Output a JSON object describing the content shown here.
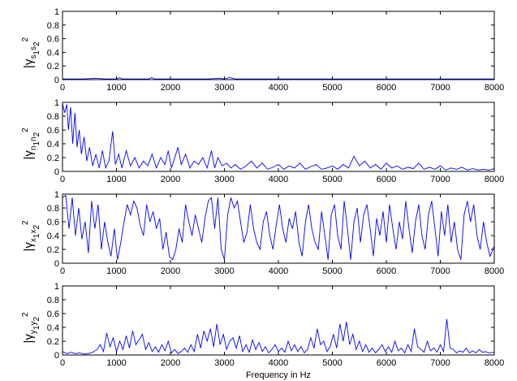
{
  "chart_data": [
    {
      "type": "line",
      "ylabel": {
        "main": "|γ",
        "sub1": "s",
        "sub2": "s",
        "idx1": "1",
        "idx2": "2",
        "sup": "2"
      },
      "xlim": [
        0,
        8000
      ],
      "ylim": [
        0,
        1
      ],
      "xticks": [
        "0",
        "1000",
        "2000",
        "3000",
        "4000",
        "5000",
        "6000",
        "7000",
        "8000"
      ],
      "yticks": [
        "0",
        "0.2",
        "0.4",
        "0.6",
        "0.8",
        "1"
      ],
      "color": "#0000ff",
      "x": [
        0,
        50,
        100,
        200,
        400,
        600,
        800,
        1000,
        1060,
        1100,
        1150,
        1300,
        1600,
        1650,
        1700,
        2000,
        2200,
        2500,
        2700,
        2900,
        3000,
        3100,
        3200,
        3400,
        3700,
        4000,
        4300,
        4600,
        4800,
        5000,
        5300,
        5600,
        6000,
        6300,
        6600,
        7000,
        7300,
        7600,
        8000
      ],
      "y": [
        0.01,
        0.01,
        0.01,
        0.01,
        0.01,
        0.02,
        0.01,
        0.01,
        0.03,
        0.01,
        0.01,
        0.01,
        0.01,
        0.03,
        0.01,
        0.01,
        0.01,
        0.01,
        0.01,
        0.02,
        0.01,
        0.03,
        0.01,
        0.01,
        0.01,
        0.01,
        0.01,
        0.01,
        0.01,
        0.01,
        0.01,
        0.01,
        0.01,
        0.01,
        0.01,
        0.01,
        0.01,
        0.01,
        0.01
      ]
    },
    {
      "type": "line",
      "ylabel": {
        "main": "|γ",
        "sub1": "n",
        "sub2": "n",
        "idx1": "1",
        "idx2": "2",
        "sup": "2"
      },
      "xlim": [
        0,
        8000
      ],
      "ylim": [
        0,
        1
      ],
      "xticks": [
        "0",
        "1000",
        "2000",
        "3000",
        "4000",
        "5000",
        "6000",
        "7000",
        "8000"
      ],
      "yticks": [
        "0",
        "0.2",
        "0.4",
        "0.6",
        "0.8",
        "1"
      ],
      "color": "#0000ff",
      "x": [
        0,
        40,
        80,
        110,
        150,
        190,
        230,
        270,
        310,
        350,
        400,
        450,
        500,
        560,
        620,
        680,
        740,
        800,
        860,
        930,
        980,
        1040,
        1100,
        1180,
        1260,
        1340,
        1420,
        1500,
        1580,
        1660,
        1740,
        1820,
        1900,
        1960,
        2020,
        2080,
        2140,
        2200,
        2280,
        2360,
        2440,
        2520,
        2600,
        2680,
        2760,
        2820,
        2880,
        2960,
        3040,
        3120,
        3200,
        3300,
        3400,
        3500,
        3600,
        3700,
        3800,
        3900,
        4000,
        4100,
        4200,
        4300,
        4400,
        4500,
        4600,
        4700,
        4800,
        4900,
        5000,
        5100,
        5200,
        5300,
        5400,
        5500,
        5600,
        5700,
        5800,
        5900,
        6000,
        6100,
        6200,
        6300,
        6400,
        6500,
        6600,
        6700,
        6800,
        6900,
        7000,
        7100,
        7200,
        7300,
        7400,
        7500,
        7600,
        7700,
        7800,
        7900,
        8000
      ],
      "y": [
        0.98,
        0.85,
        0.97,
        0.6,
        0.93,
        0.4,
        0.85,
        0.35,
        0.6,
        0.25,
        0.5,
        0.15,
        0.35,
        0.08,
        0.25,
        0.05,
        0.3,
        0.05,
        0.15,
        0.58,
        0.1,
        0.25,
        0.05,
        0.3,
        0.08,
        0.2,
        0.05,
        0.15,
        0.08,
        0.25,
        0.05,
        0.2,
        0.1,
        0.3,
        0.05,
        0.2,
        0.35,
        0.1,
        0.25,
        0.05,
        0.15,
        0.1,
        0.2,
        0.05,
        0.3,
        0.05,
        0.2,
        0.08,
        0.12,
        0.05,
        0.1,
        0.03,
        0.08,
        0.15,
        0.05,
        0.12,
        0.03,
        0.06,
        0.1,
        0.03,
        0.08,
        0.05,
        0.12,
        0.03,
        0.07,
        0.1,
        0.03,
        0.05,
        0.08,
        0.03,
        0.1,
        0.05,
        0.22,
        0.08,
        0.15,
        0.05,
        0.1,
        0.03,
        0.12,
        0.05,
        0.08,
        0.03,
        0.06,
        0.04,
        0.12,
        0.03,
        0.06,
        0.03,
        0.08,
        0.02,
        0.05,
        0.03,
        0.06,
        0.02,
        0.04,
        0.02,
        0.03,
        0.02,
        0.04
      ]
    },
    {
      "type": "line",
      "ylabel": {
        "main": "|γ",
        "sub1": "x",
        "sub2": "x",
        "idx1": "1",
        "idx2": "2",
        "sup": "2"
      },
      "xlim": [
        0,
        8000
      ],
      "ylim": [
        0,
        1
      ],
      "xticks": [
        "0",
        "1000",
        "2000",
        "3000",
        "4000",
        "5000",
        "6000",
        "7000",
        "8000"
      ],
      "yticks": [
        "0",
        "0.2",
        "0.4",
        "0.6",
        "0.8",
        "1"
      ],
      "color": "#0000ff",
      "x": [
        0,
        60,
        120,
        180,
        240,
        300,
        360,
        420,
        480,
        540,
        600,
        660,
        720,
        780,
        840,
        900,
        960,
        1020,
        1080,
        1140,
        1200,
        1260,
        1320,
        1380,
        1440,
        1500,
        1560,
        1620,
        1680,
        1740,
        1800,
        1860,
        1920,
        1980,
        2040,
        2100,
        2160,
        2220,
        2280,
        2340,
        2400,
        2460,
        2520,
        2580,
        2640,
        2700,
        2760,
        2820,
        2880,
        2940,
        3000,
        3060,
        3120,
        3180,
        3240,
        3300,
        3360,
        3420,
        3480,
        3540,
        3600,
        3660,
        3720,
        3780,
        3840,
        3900,
        3960,
        4020,
        4080,
        4140,
        4200,
        4260,
        4320,
        4380,
        4440,
        4500,
        4560,
        4620,
        4680,
        4740,
        4800,
        4860,
        4920,
        4980,
        5040,
        5100,
        5160,
        5220,
        5280,
        5340,
        5400,
        5460,
        5520,
        5580,
        5640,
        5700,
        5760,
        5820,
        5880,
        5940,
        6000,
        6060,
        6120,
        6180,
        6240,
        6300,
        6360,
        6420,
        6480,
        6540,
        6600,
        6660,
        6720,
        6780,
        6840,
        6900,
        6960,
        7020,
        7080,
        7140,
        7200,
        7260,
        7320,
        7380,
        7440,
        7500,
        7560,
        7620,
        7680,
        7740,
        7800,
        7860,
        7920,
        8000
      ],
      "y": [
        0.95,
        0.98,
        0.5,
        0.95,
        0.4,
        0.8,
        0.35,
        0.6,
        0.15,
        0.9,
        0.5,
        0.85,
        0.2,
        0.6,
        0.3,
        0.1,
        0.5,
        0.05,
        0.3,
        0.6,
        0.85,
        0.7,
        0.9,
        0.8,
        0.55,
        0.4,
        0.85,
        0.6,
        0.75,
        0.5,
        0.65,
        0.2,
        0.45,
        0.1,
        0.05,
        0.2,
        0.5,
        0.3,
        0.85,
        0.6,
        0.4,
        0.7,
        0.5,
        0.3,
        0.65,
        0.9,
        0.95,
        0.5,
        0.95,
        0.2,
        0.05,
        0.7,
        0.95,
        0.8,
        0.9,
        0.6,
        0.3,
        0.45,
        0.85,
        0.5,
        0.3,
        0.2,
        0.6,
        0.75,
        0.4,
        0.2,
        0.55,
        0.85,
        0.5,
        0.3,
        0.65,
        0.5,
        0.75,
        0.3,
        0.1,
        0.6,
        0.85,
        0.5,
        0.3,
        0.2,
        0.75,
        0.4,
        0.05,
        0.7,
        0.85,
        0.4,
        0.2,
        0.9,
        0.5,
        0.05,
        0.6,
        0.8,
        0.3,
        0.7,
        0.85,
        0.5,
        0.1,
        0.65,
        0.4,
        0.75,
        0.3,
        0.85,
        0.5,
        0.2,
        0.6,
        0.35,
        0.9,
        0.5,
        0.15,
        0.6,
        0.85,
        0.4,
        0.2,
        0.7,
        0.9,
        0.5,
        0.1,
        0.75,
        0.4,
        0.85,
        0.3,
        0.6,
        0.2,
        0.05,
        0.7,
        0.9,
        0.6,
        0.85,
        0.4,
        0.2,
        0.6,
        0.3,
        0.1,
        0.25
      ]
    },
    {
      "type": "line",
      "ylabel": {
        "main": "|γ",
        "sub1": "y",
        "sub2": "y",
        "idx1": "1",
        "idx2": "2",
        "sup": "2"
      },
      "xlim": [
        0,
        8000
      ],
      "ylim": [
        0,
        1
      ],
      "xticks": [
        "0",
        "1000",
        "2000",
        "3000",
        "4000",
        "5000",
        "6000",
        "7000",
        "8000"
      ],
      "yticks": [
        "0",
        "0.2",
        "0.4",
        "0.6",
        "0.8",
        "1"
      ],
      "color": "#0000ff",
      "x": [
        0,
        80,
        160,
        240,
        320,
        400,
        480,
        560,
        640,
        700,
        760,
        820,
        880,
        940,
        1000,
        1060,
        1120,
        1180,
        1240,
        1300,
        1360,
        1420,
        1480,
        1540,
        1600,
        1660,
        1720,
        1780,
        1840,
        1900,
        1960,
        2020,
        2080,
        2140,
        2200,
        2260,
        2320,
        2380,
        2440,
        2500,
        2560,
        2620,
        2680,
        2740,
        2800,
        2860,
        2920,
        2980,
        3040,
        3100,
        3160,
        3220,
        3280,
        3340,
        3400,
        3460,
        3520,
        3580,
        3640,
        3700,
        3760,
        3820,
        3880,
        3940,
        4000,
        4060,
        4120,
        4180,
        4240,
        4300,
        4360,
        4420,
        4480,
        4540,
        4600,
        4660,
        4720,
        4780,
        4840,
        4900,
        4960,
        5020,
        5080,
        5140,
        5200,
        5260,
        5320,
        5380,
        5440,
        5500,
        5560,
        5620,
        5680,
        5740,
        5800,
        5860,
        5920,
        5980,
        6040,
        6100,
        6160,
        6220,
        6280,
        6340,
        6400,
        6460,
        6520,
        6580,
        6640,
        6700,
        6760,
        6820,
        6880,
        6940,
        7000,
        7060,
        7120,
        7180,
        7240,
        7300,
        7360,
        7420,
        7480,
        7540,
        7600,
        7660,
        7720,
        7780,
        7840,
        7900,
        8000
      ],
      "y": [
        0.05,
        0.02,
        0.04,
        0.02,
        0.03,
        0.01,
        0.02,
        0.04,
        0.08,
        0.15,
        0.05,
        0.32,
        0.12,
        0.25,
        0.05,
        0.2,
        0.08,
        0.28,
        0.1,
        0.35,
        0.15,
        0.22,
        0.3,
        0.08,
        0.18,
        0.05,
        0.12,
        0.04,
        0.15,
        0.06,
        0.2,
        0.03,
        0.08,
        0.02,
        0.05,
        0.1,
        0.04,
        0.15,
        0.05,
        0.3,
        0.1,
        0.35,
        0.2,
        0.38,
        0.12,
        0.45,
        0.15,
        0.3,
        0.08,
        0.2,
        0.25,
        0.1,
        0.28,
        0.05,
        0.15,
        0.04,
        0.22,
        0.08,
        0.18,
        0.05,
        0.12,
        0.03,
        0.08,
        0.15,
        0.05,
        0.1,
        0.04,
        0.2,
        0.06,
        0.15,
        0.05,
        0.12,
        0.03,
        0.08,
        0.25,
        0.1,
        0.38,
        0.15,
        0.2,
        0.05,
        0.12,
        0.3,
        0.1,
        0.45,
        0.2,
        0.48,
        0.15,
        0.3,
        0.08,
        0.2,
        0.05,
        0.15,
        0.04,
        0.1,
        0.03,
        0.08,
        0.15,
        0.05,
        0.12,
        0.04,
        0.2,
        0.06,
        0.1,
        0.03,
        0.15,
        0.05,
        0.38,
        0.12,
        0.08,
        0.04,
        0.2,
        0.06,
        0.1,
        0.04,
        0.15,
        0.05,
        0.52,
        0.1,
        0.08,
        0.03,
        0.06,
        0.04,
        0.1,
        0.03,
        0.06,
        0.03,
        0.08,
        0.04,
        0.05,
        0.03,
        0.04
      ]
    }
  ],
  "xlabel": "Frequency in Hz"
}
